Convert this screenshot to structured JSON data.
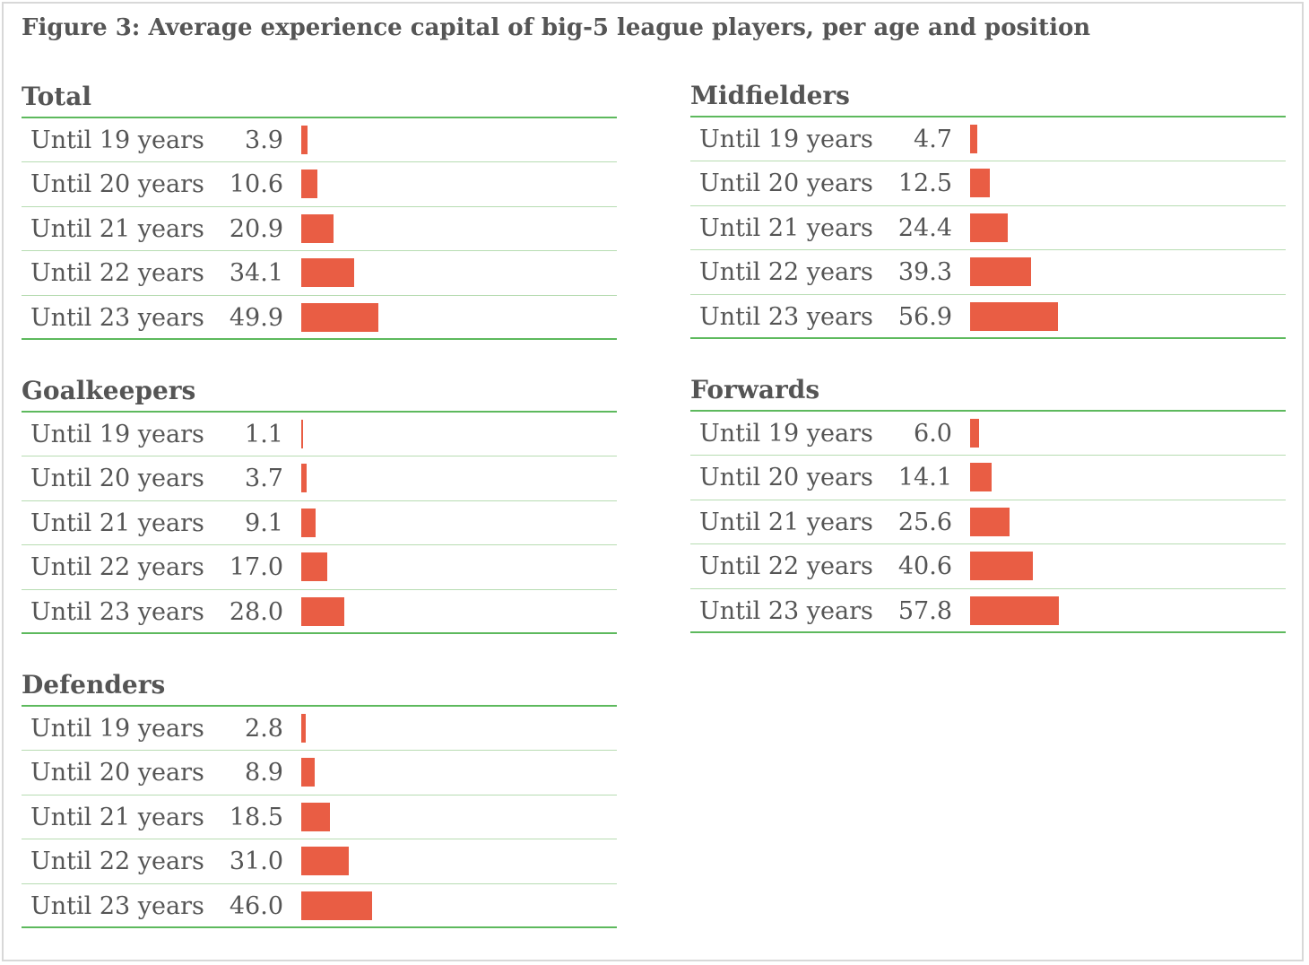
{
  "title": "Figure 3: Average experience capital of big-5 league players, per age and position",
  "colors": {
    "bar": "#e95d44",
    "rule_strong": "#5db95d",
    "rule_light": "#b7dcb2",
    "text": "#555555"
  },
  "chart_data": [
    {
      "type": "bar",
      "orientation": "horizontal",
      "title": "Total",
      "categories": [
        "Until 19 years",
        "Until 20 years",
        "Until 21 years",
        "Until 22 years",
        "Until 23 years"
      ],
      "values": [
        3.9,
        10.6,
        20.9,
        34.1,
        49.9
      ],
      "value_labels": [
        "3.9",
        "10.6",
        "20.9",
        "34.1",
        "49.9"
      ],
      "xlim": [
        0,
        100
      ]
    },
    {
      "type": "bar",
      "orientation": "horizontal",
      "title": "Goalkeepers",
      "categories": [
        "Until 19 years",
        "Until 20 years",
        "Until 21 years",
        "Until 22 years",
        "Until 23 years"
      ],
      "values": [
        1.1,
        3.7,
        9.1,
        17.0,
        28.0
      ],
      "value_labels": [
        "1.1",
        "3.7",
        "9.1",
        "17.0",
        "28.0"
      ],
      "xlim": [
        0,
        100
      ]
    },
    {
      "type": "bar",
      "orientation": "horizontal",
      "title": "Defenders",
      "categories": [
        "Until 19 years",
        "Until 20 years",
        "Until 21 years",
        "Until 22 years",
        "Until 23 years"
      ],
      "values": [
        2.8,
        8.9,
        18.5,
        31.0,
        46.0
      ],
      "value_labels": [
        "2.8",
        "8.9",
        "18.5",
        "31.0",
        "46.0"
      ],
      "xlim": [
        0,
        100
      ]
    },
    {
      "type": "bar",
      "orientation": "horizontal",
      "title": "Midfielders",
      "categories": [
        "Until 19 years",
        "Until 20 years",
        "Until 21 years",
        "Until 22 years",
        "Until 23 years"
      ],
      "values": [
        4.7,
        12.5,
        24.4,
        39.3,
        56.9
      ],
      "value_labels": [
        "4.7",
        "12.5",
        "24.4",
        "39.3",
        "56.9"
      ],
      "xlim": [
        0,
        100
      ]
    },
    {
      "type": "bar",
      "orientation": "horizontal",
      "title": "Forwards",
      "categories": [
        "Until 19 years",
        "Until 20 years",
        "Until 21 years",
        "Until 22 years",
        "Until 23 years"
      ],
      "values": [
        6.0,
        14.1,
        25.6,
        40.6,
        57.8
      ],
      "value_labels": [
        "6.0",
        "14.1",
        "25.6",
        "40.6",
        "57.8"
      ],
      "xlim": [
        0,
        100
      ]
    }
  ]
}
